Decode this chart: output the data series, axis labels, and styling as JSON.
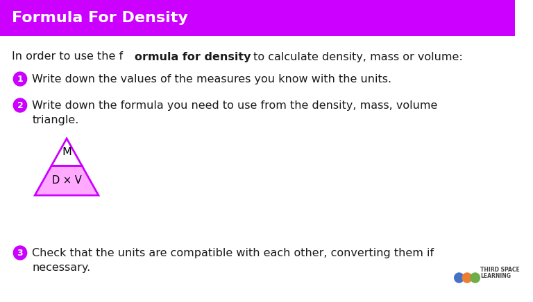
{
  "title": "Formula For Density",
  "title_bg_color": "#CC00FF",
  "title_text_color": "#FFFFFF",
  "body_bg_color": "#FFFFFF",
  "step1_text": "Write down the values of the measures you know with the units.",
  "step2_line1": "Write down the formula you need to use from the density, mass, volume",
  "step2_line2": "triangle.",
  "step3_line1": "Check that the units are compatible with each other, converting them if",
  "step3_line2": "necessary.",
  "bullet_color": "#CC00FF",
  "text_color": "#1a1a1a",
  "triangle_outline": "#CC00FF",
  "triangle_fill_top": "#FFFFFF",
  "triangle_fill_bottom": "#FFAAFF"
}
